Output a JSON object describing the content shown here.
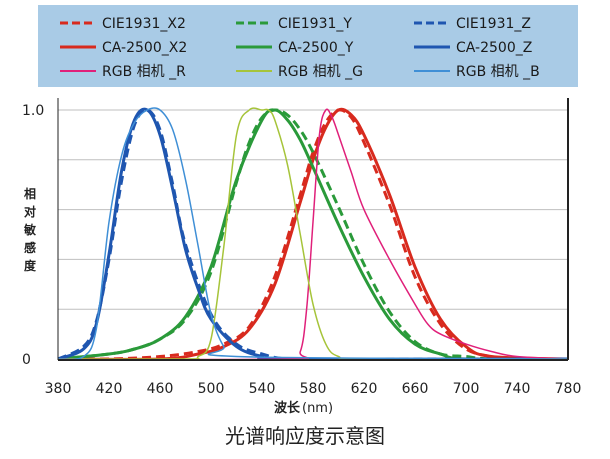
{
  "chart_data": {
    "type": "line",
    "title": "光谱响应度示意图",
    "xlabel": "波长",
    "xlabel_unit": "(nm)",
    "ylabel": "相对敏感度",
    "xlim": [
      380,
      780
    ],
    "ylim": [
      0,
      1.0
    ],
    "x_ticks": [
      "380",
      "420",
      "460",
      "500",
      "540",
      "580",
      "620",
      "660",
      "700",
      "740",
      "780"
    ],
    "y_ticks": [
      "0",
      "1.0"
    ],
    "grid": "horizontal",
    "legend_position": "top",
    "colors": {
      "red": "#d82a1e",
      "green": "#2a9a3a",
      "blue": "#1f56b0",
      "magenta": "#e0207a",
      "lime": "#a6c43a",
      "light_blue": "#3f8fd6",
      "legend_bg": "#a9cbe6",
      "grid": "#bfbfbf"
    },
    "series": [
      {
        "name": "CIE1931_X2",
        "color": "red",
        "dash": true,
        "width": 3,
        "x": [
          380,
          420,
          460,
          490,
          510,
          530,
          550,
          570,
          580,
          590,
          600,
          610,
          620,
          640,
          660,
          680,
          700,
          720,
          740,
          780
        ],
        "y": [
          0,
          0,
          0.01,
          0.03,
          0.06,
          0.13,
          0.33,
          0.66,
          0.83,
          0.95,
          1.0,
          0.97,
          0.87,
          0.62,
          0.33,
          0.14,
          0.04,
          0.01,
          0,
          0
        ]
      },
      {
        "name": "CIE1931_Y",
        "color": "green",
        "dash": true,
        "width": 3,
        "x": [
          380,
          420,
          440,
          460,
          480,
          500,
          520,
          530,
          540,
          550,
          560,
          570,
          580,
          600,
          620,
          640,
          660,
          680,
          700,
          720,
          780
        ],
        "y": [
          0,
          0.02,
          0.04,
          0.08,
          0.16,
          0.35,
          0.71,
          0.87,
          0.97,
          1.0,
          0.98,
          0.92,
          0.83,
          0.61,
          0.38,
          0.19,
          0.07,
          0.02,
          0.01,
          0,
          0
        ]
      },
      {
        "name": "CIE1931_Z",
        "color": "blue",
        "dash": true,
        "width": 3,
        "x": [
          380,
          400,
          410,
          420,
          430,
          440,
          450,
          460,
          470,
          480,
          500,
          520,
          540,
          560,
          600,
          780
        ],
        "y": [
          0,
          0.05,
          0.15,
          0.4,
          0.72,
          0.94,
          1.0,
          0.92,
          0.7,
          0.46,
          0.18,
          0.06,
          0.02,
          0,
          0,
          0
        ]
      },
      {
        "name": "CA-2500_X2",
        "color": "red",
        "dash": false,
        "width": 3,
        "x": [
          380,
          460,
          490,
          510,
          530,
          550,
          570,
          580,
          590,
          600,
          610,
          620,
          640,
          660,
          680,
          700,
          720,
          780
        ],
        "y": [
          0,
          0,
          0.02,
          0.05,
          0.12,
          0.3,
          0.63,
          0.8,
          0.93,
          1.0,
          0.98,
          0.9,
          0.66,
          0.37,
          0.16,
          0.05,
          0.01,
          0
        ]
      },
      {
        "name": "CA-2500_Y",
        "color": "green",
        "dash": false,
        "width": 3,
        "x": [
          380,
          420,
          440,
          460,
          480,
          500,
          520,
          540,
          550,
          560,
          570,
          580,
          600,
          620,
          640,
          660,
          680,
          700,
          780
        ],
        "y": [
          0,
          0.02,
          0.04,
          0.08,
          0.17,
          0.37,
          0.72,
          0.96,
          1.0,
          0.96,
          0.88,
          0.77,
          0.54,
          0.33,
          0.16,
          0.06,
          0.02,
          0,
          0
        ]
      },
      {
        "name": "CA-2500_Z",
        "color": "blue",
        "dash": false,
        "width": 3,
        "x": [
          380,
          400,
          410,
          420,
          430,
          440,
          450,
          460,
          470,
          480,
          490,
          500,
          520,
          540,
          560,
          780
        ],
        "y": [
          0,
          0.04,
          0.14,
          0.42,
          0.76,
          0.96,
          1.0,
          0.9,
          0.68,
          0.44,
          0.28,
          0.16,
          0.05,
          0.01,
          0,
          0
        ]
      },
      {
        "name": "RGB 相机 _R",
        "color": "magenta",
        "dash": false,
        "width": 1.5,
        "x": [
          380,
          560,
          570,
          575,
          580,
          585,
          590,
          595,
          600,
          610,
          620,
          640,
          660,
          670,
          680,
          700,
          720,
          740,
          780
        ],
        "y": [
          0,
          0,
          0.03,
          0.2,
          0.55,
          0.9,
          1.0,
          0.97,
          0.9,
          0.75,
          0.6,
          0.4,
          0.22,
          0.14,
          0.1,
          0.06,
          0.03,
          0.01,
          0
        ]
      },
      {
        "name": "RGB 相机 _G",
        "color": "lime",
        "dash": false,
        "width": 1.5,
        "x": [
          380,
          480,
          490,
          500,
          510,
          520,
          530,
          540,
          545,
          550,
          560,
          570,
          580,
          590,
          600,
          620,
          780
        ],
        "y": [
          0,
          0,
          0.01,
          0.08,
          0.45,
          0.9,
          1.0,
          1.0,
          1.0,
          0.96,
          0.78,
          0.5,
          0.22,
          0.06,
          0.01,
          0,
          0
        ]
      },
      {
        "name": "RGB 相机 _B",
        "color": "light_blue",
        "dash": false,
        "width": 1.5,
        "x": [
          380,
          400,
          410,
          420,
          430,
          440,
          450,
          460,
          470,
          480,
          490,
          500,
          510,
          520,
          780
        ],
        "y": [
          0,
          0.01,
          0.12,
          0.55,
          0.82,
          0.95,
          1.0,
          1.0,
          0.92,
          0.72,
          0.45,
          0.18,
          0.05,
          0.01,
          0
        ]
      }
    ],
    "legend_order": [
      0,
      1,
      2,
      3,
      4,
      5,
      6,
      7,
      8
    ]
  }
}
